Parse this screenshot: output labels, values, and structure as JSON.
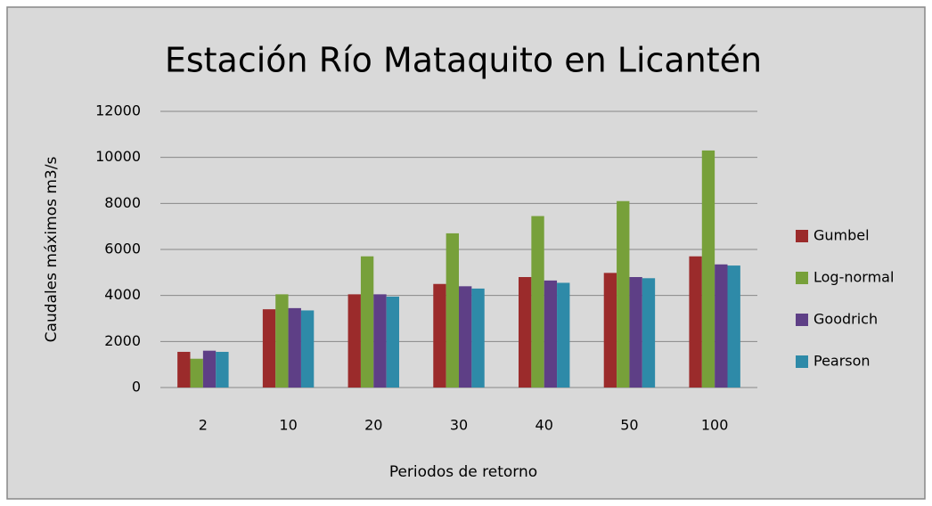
{
  "chart_data": {
    "type": "bar",
    "title": "Estación Río Mataquito en Licantén",
    "x_label": "Periodos de retorno",
    "y_label": "Caudales máximos m3/s",
    "categories": [
      "2",
      "10",
      "20",
      "30",
      "40",
      "50",
      "100"
    ],
    "series": [
      {
        "name": "Gumbel",
        "color": "#9b2b2b",
        "values": [
          1550,
          3400,
          4050,
          4500,
          4800,
          4980,
          5700
        ]
      },
      {
        "name": "Log-normal",
        "color": "#77a03a",
        "values": [
          1250,
          4050,
          5700,
          6700,
          7450,
          8100,
          10300
        ]
      },
      {
        "name": "Goodrich",
        "color": "#5e3f86",
        "values": [
          1600,
          3450,
          4050,
          4400,
          4650,
          4800,
          5350
        ]
      },
      {
        "name": "Pearson",
        "color": "#2e8aa8",
        "values": [
          1550,
          3350,
          3950,
          4300,
          4550,
          4750,
          5300
        ]
      }
    ],
    "ylim": [
      0,
      12000
    ],
    "yticks": [
      0,
      2000,
      4000,
      6000,
      8000,
      10000,
      12000
    ],
    "grid": true,
    "legend": "right"
  }
}
